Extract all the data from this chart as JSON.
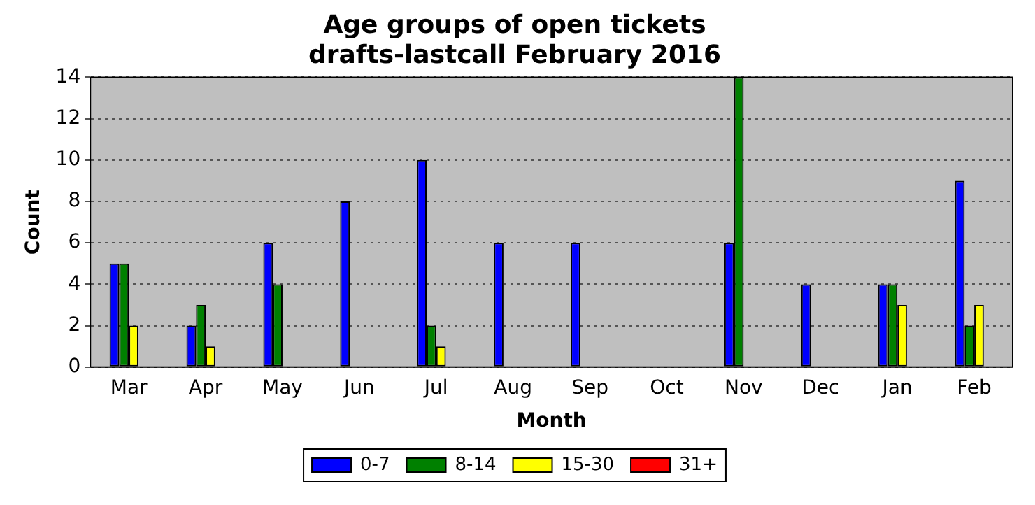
{
  "chart_data": {
    "type": "bar",
    "title": "Age groups of open tickets",
    "subtitle": "drafts-lastcall February 2016",
    "xlabel": "Month",
    "ylabel": "Count",
    "categories": [
      "Mar",
      "Apr",
      "May",
      "Jun",
      "Jul",
      "Aug",
      "Sep",
      "Oct",
      "Nov",
      "Dec",
      "Jan",
      "Feb"
    ],
    "series": [
      {
        "name": "0-7",
        "color": "#0000ff",
        "values": [
          5,
          2,
          6,
          8,
          10,
          6,
          6,
          0,
          6,
          4,
          4,
          9
        ]
      },
      {
        "name": "8-14",
        "color": "#008000",
        "values": [
          5,
          3,
          4,
          0,
          2,
          0,
          0,
          0,
          14,
          0,
          4,
          2
        ]
      },
      {
        "name": "15-30",
        "color": "#ffff00",
        "values": [
          2,
          1,
          0,
          0,
          1,
          0,
          0,
          0,
          0,
          0,
          3,
          3
        ]
      },
      {
        "name": "31+",
        "color": "#ff0000",
        "values": [
          0,
          0,
          0,
          0,
          0,
          0,
          0,
          0,
          0,
          0,
          0,
          0
        ]
      }
    ],
    "ylim": [
      0,
      14
    ],
    "yticks": [
      0,
      2,
      4,
      6,
      8,
      10,
      12,
      14
    ],
    "grid": "y",
    "legend": "bottom"
  }
}
